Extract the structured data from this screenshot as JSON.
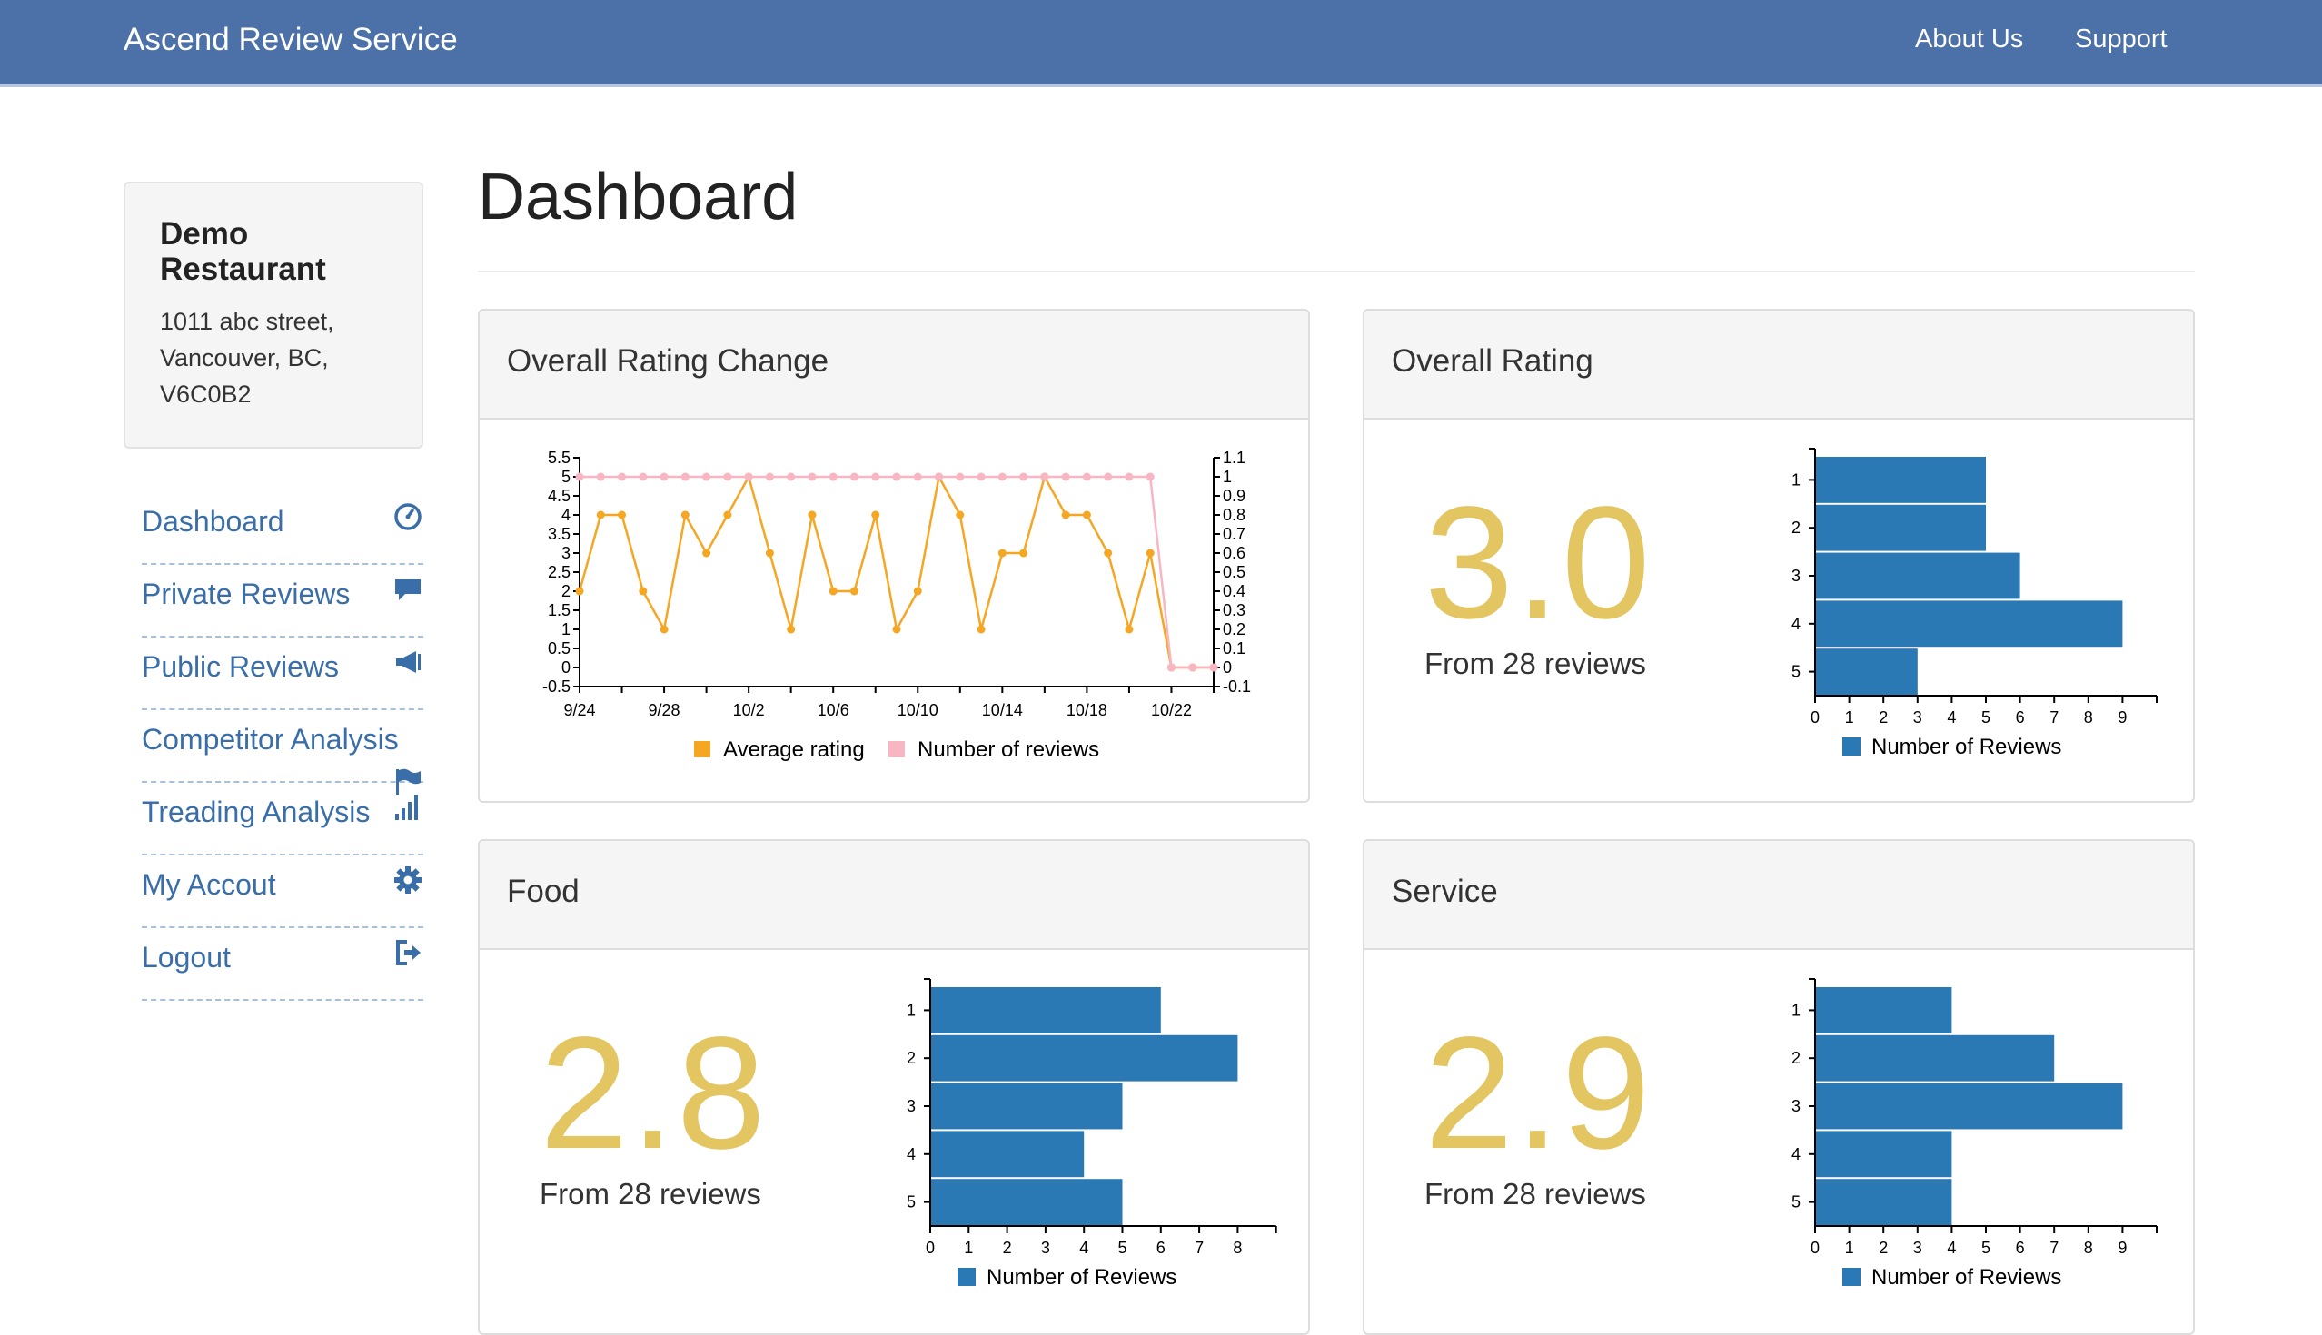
{
  "app": {
    "title": "Ascend Review Service"
  },
  "nav": {
    "about": "About Us",
    "support": "Support"
  },
  "restaurant": {
    "name": "Demo Restaurant",
    "address_line1": "1011 abc street,",
    "address_line2": "Vancouver, BC,",
    "address_line3": "V6C0B2"
  },
  "sidebar": {
    "items": [
      {
        "label": "Dashboard",
        "icon": "dashboard-gauge-icon"
      },
      {
        "label": "Private Reviews",
        "icon": "comment-icon"
      },
      {
        "label": "Public Reviews",
        "icon": "bullhorn-icon"
      },
      {
        "label": "Competitor Analysis",
        "icon": "flag-icon"
      },
      {
        "label": "Treading Analysis",
        "icon": "signal-bars-icon"
      },
      {
        "label": "My Accout",
        "icon": "gear-icon"
      },
      {
        "label": "Logout",
        "icon": "logout-icon"
      }
    ]
  },
  "main": {
    "title": "Dashboard"
  },
  "panels": {
    "overall_change": {
      "title": "Overall Rating Change"
    },
    "overall_rating": {
      "title": "Overall Rating",
      "score": "3.0",
      "subtitle": "From 28 reviews"
    },
    "food": {
      "title": "Food",
      "score": "2.8",
      "subtitle": "From 28 reviews"
    },
    "service": {
      "title": "Service",
      "score": "2.9",
      "subtitle": "From 28 reviews"
    }
  },
  "colors": {
    "navbar": "#4c71a8",
    "link": "#3a6ea8",
    "score": "#e3c561",
    "bar": "#2a78b4",
    "avg_line": "#f5a623",
    "count_line": "#f7b6c2"
  },
  "chart_data": [
    {
      "type": "line",
      "id": "overall_change",
      "x": [
        "9/24",
        "9/25",
        "9/26",
        "9/27",
        "9/28",
        "9/29",
        "9/30",
        "10/1",
        "10/2",
        "10/3",
        "10/4",
        "10/5",
        "10/6",
        "10/7",
        "10/8",
        "10/9",
        "10/10",
        "10/11",
        "10/12",
        "10/13",
        "10/14",
        "10/15",
        "10/16",
        "10/17",
        "10/18",
        "10/19",
        "10/20",
        "10/21",
        "10/22",
        "10/23",
        "10/24"
      ],
      "x_tick_labels": [
        "9/24",
        "9/28",
        "10/2",
        "10/6",
        "10/10",
        "10/14",
        "10/18",
        "10/22"
      ],
      "series": [
        {
          "name": "Average rating",
          "axis": "left",
          "values": [
            2,
            4,
            4,
            2,
            1,
            4,
            3,
            4,
            5,
            3,
            1,
            4,
            2,
            2,
            4,
            1,
            2,
            5,
            4,
            1,
            3,
            3,
            5,
            4,
            4,
            3,
            1,
            3,
            0,
            0,
            0
          ]
        },
        {
          "name": "Number of reviews",
          "axis": "right",
          "values": [
            1,
            1,
            1,
            1,
            1,
            1,
            1,
            1,
            1,
            1,
            1,
            1,
            1,
            1,
            1,
            1,
            1,
            1,
            1,
            1,
            1,
            1,
            1,
            1,
            1,
            1,
            1,
            1,
            0,
            0,
            0
          ]
        }
      ],
      "y_left": {
        "ylim": [
          -0.5,
          5.5
        ],
        "ticks": [
          "-0.5",
          "0",
          "0.5",
          "1",
          "1.5",
          "2",
          "2.5",
          "3",
          "3.5",
          "4",
          "4.5",
          "5",
          "5.5"
        ]
      },
      "y_right": {
        "ylim": [
          -0.1,
          1.1
        ],
        "ticks": [
          "-0.1",
          "0",
          "0.1",
          "0.2",
          "0.3",
          "0.4",
          "0.5",
          "0.6",
          "0.7",
          "0.8",
          "0.9",
          "1",
          "1.1"
        ]
      },
      "legend": [
        "Average rating",
        "Number of reviews"
      ]
    },
    {
      "type": "bar",
      "id": "overall_rating",
      "orientation": "horizontal",
      "categories": [
        "1",
        "2",
        "3",
        "4",
        "5"
      ],
      "values": [
        5,
        5,
        6,
        9,
        3
      ],
      "x_ticks": [
        "0",
        "1",
        "2",
        "3",
        "4",
        "5",
        "6",
        "7",
        "8",
        "9"
      ],
      "xlim": [
        0,
        10
      ],
      "legend": [
        "Number of Reviews"
      ]
    },
    {
      "type": "bar",
      "id": "food",
      "orientation": "horizontal",
      "categories": [
        "1",
        "2",
        "3",
        "4",
        "5"
      ],
      "values": [
        6,
        8,
        5,
        4,
        5
      ],
      "x_ticks": [
        "0",
        "1",
        "2",
        "3",
        "4",
        "5",
        "6",
        "7",
        "8"
      ],
      "xlim": [
        0,
        9
      ],
      "legend": [
        "Number of Reviews"
      ]
    },
    {
      "type": "bar",
      "id": "service",
      "orientation": "horizontal",
      "categories": [
        "1",
        "2",
        "3",
        "4",
        "5"
      ],
      "values": [
        4,
        7,
        9,
        4,
        4
      ],
      "x_ticks": [
        "0",
        "1",
        "2",
        "3",
        "4",
        "5",
        "6",
        "7",
        "8",
        "9"
      ],
      "xlim": [
        0,
        10
      ],
      "legend": [
        "Number of Reviews"
      ]
    }
  ]
}
